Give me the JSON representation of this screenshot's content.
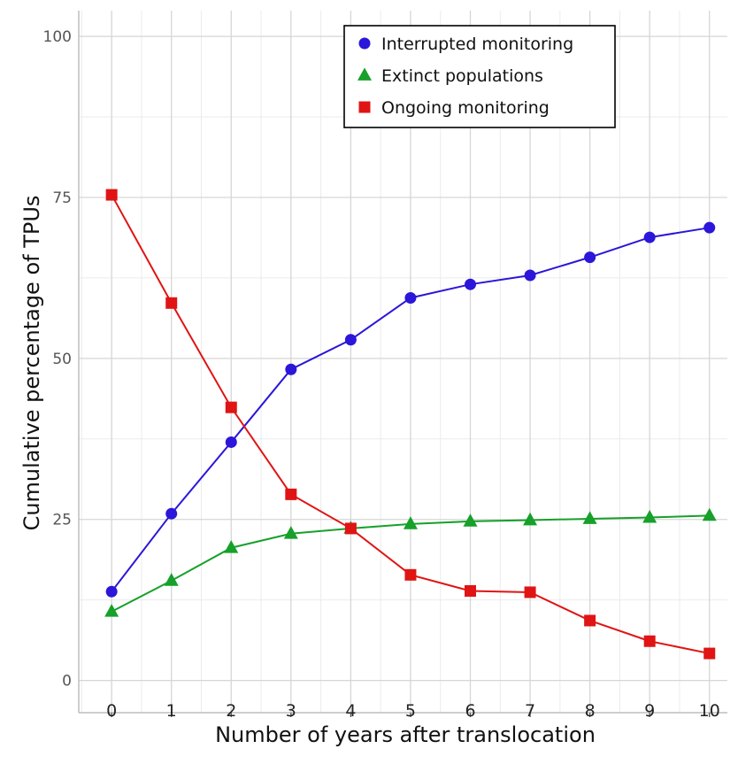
{
  "chart_data": {
    "type": "line",
    "title": "",
    "xlabel": "Number of years after translocation",
    "ylabel": "Cumulative percentage of TPUs",
    "x": [
      0,
      1,
      2,
      3,
      4,
      5,
      6,
      7,
      8,
      9,
      10
    ],
    "xlim": [
      -0.55,
      10.3
    ],
    "ylim": [
      -5,
      104
    ],
    "x_ticks": [
      "0",
      "1",
      "2",
      "3",
      "4",
      "5",
      "6",
      "7",
      "8",
      "9",
      "10"
    ],
    "y_ticks": [
      "0",
      "25",
      "50",
      "75",
      "100"
    ],
    "y_tick_values": [
      0,
      25,
      50,
      75,
      100
    ],
    "grid": true,
    "legend_position": "top-right",
    "series": [
      {
        "name": "Interrupted monitoring",
        "marker": "circle",
        "color": "#2b16d9",
        "values": [
          13.8,
          25.9,
          37.0,
          48.3,
          52.9,
          59.4,
          61.5,
          62.9,
          65.7,
          68.8,
          70.3
        ]
      },
      {
        "name": "Extinct populations",
        "marker": "triangle",
        "color": "#17a02a",
        "values": [
          10.7,
          15.5,
          20.6,
          22.8,
          23.6,
          24.3,
          24.7,
          24.9,
          25.1,
          25.3,
          25.6
        ]
      },
      {
        "name": "Ongoing monitoring",
        "marker": "square",
        "color": "#e01414",
        "values": [
          75.4,
          58.6,
          42.4,
          28.9,
          23.6,
          16.4,
          13.9,
          13.7,
          9.3,
          6.1,
          4.2
        ]
      }
    ]
  }
}
